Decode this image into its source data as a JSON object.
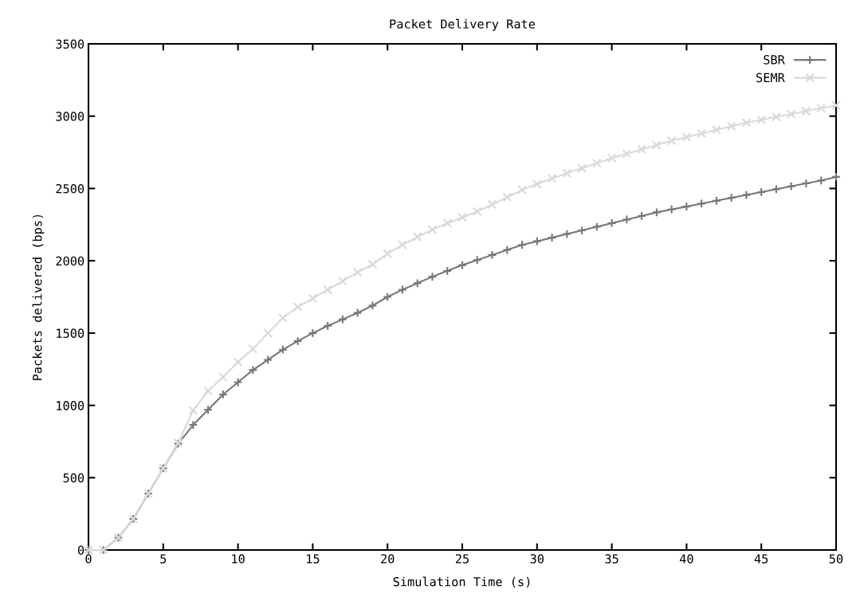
{
  "chart_data": {
    "type": "line",
    "title": "Packet Delivery Rate",
    "xlabel": "Simulation Time (s)",
    "ylabel": "Packets delivered (bps)",
    "x": [
      0,
      1,
      2,
      3,
      4,
      5,
      6,
      7,
      8,
      9,
      10,
      11,
      12,
      13,
      14,
      15,
      16,
      17,
      18,
      19,
      20,
      21,
      22,
      23,
      24,
      25,
      26,
      27,
      28,
      29,
      30,
      31,
      32,
      33,
      34,
      35,
      36,
      37,
      38,
      39,
      40,
      41,
      42,
      43,
      44,
      45,
      46,
      47,
      48,
      49,
      50
    ],
    "series": [
      {
        "name": "SBR",
        "color": "#777777",
        "marker": "plus",
        "values": [
          0,
          0,
          85,
          215,
          390,
          565,
          735,
          865,
          970,
          1075,
          1160,
          1245,
          1315,
          1385,
          1445,
          1500,
          1550,
          1595,
          1640,
          1690,
          1750,
          1800,
          1845,
          1890,
          1930,
          1970,
          2005,
          2040,
          2075,
          2110,
          2135,
          2160,
          2185,
          2210,
          2235,
          2260,
          2285,
          2310,
          2335,
          2355,
          2375,
          2395,
          2415,
          2435,
          2455,
          2475,
          2495,
          2515,
          2535,
          2555,
          2580
        ]
      },
      {
        "name": "SEMR",
        "color": "#d9d9d9",
        "marker": "cross",
        "values": [
          0,
          0,
          85,
          215,
          390,
          565,
          740,
          965,
          1100,
          1196,
          1300,
          1390,
          1500,
          1605,
          1680,
          1740,
          1800,
          1860,
          1920,
          1975,
          2050,
          2110,
          2165,
          2215,
          2260,
          2300,
          2340,
          2390,
          2440,
          2490,
          2530,
          2570,
          2605,
          2640,
          2675,
          2710,
          2740,
          2770,
          2800,
          2830,
          2855,
          2880,
          2905,
          2930,
          2955,
          2975,
          2995,
          3015,
          3035,
          3055,
          3075
        ]
      }
    ],
    "xlim": [
      0,
      50
    ],
    "xticks": [
      0,
      5,
      10,
      15,
      20,
      25,
      30,
      35,
      40,
      45,
      50
    ],
    "ylim": [
      0,
      3500
    ],
    "yticks": [
      0,
      500,
      1000,
      1500,
      2000,
      2500,
      3000,
      3500
    ],
    "grid": false,
    "legend": "top right",
    "line_style": "solid"
  }
}
